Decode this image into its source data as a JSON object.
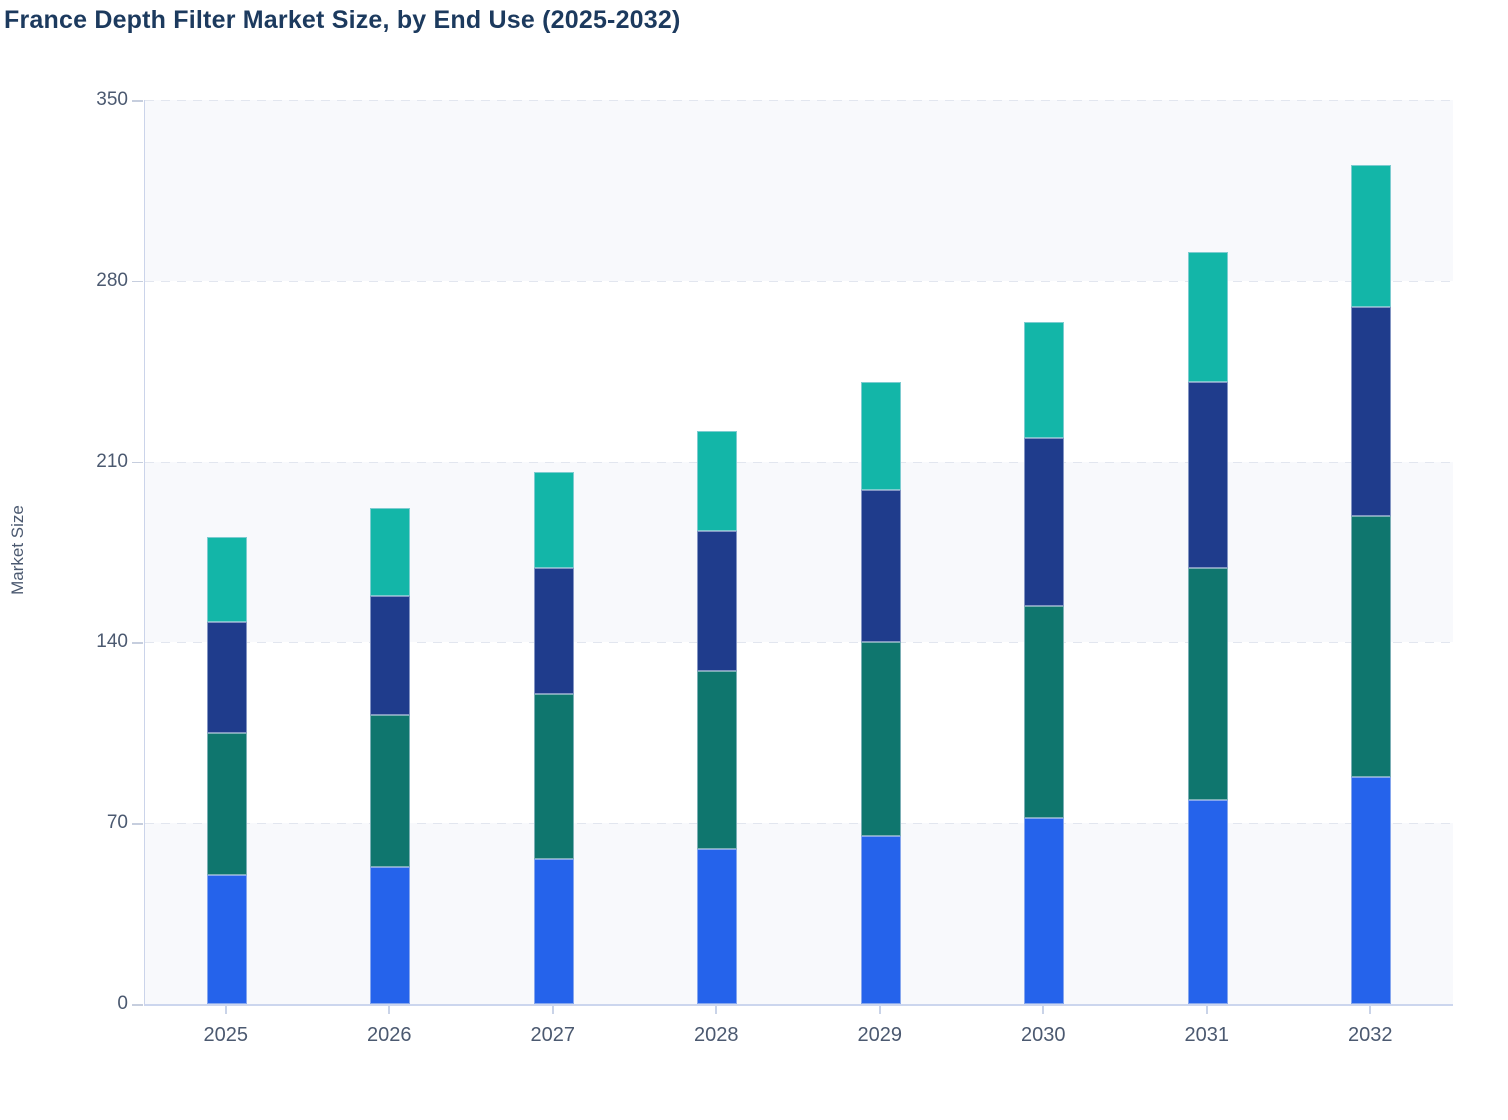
{
  "page": {
    "background_color": "#ffffff"
  },
  "chart": {
    "title": "France Depth Filter Market Size, by End Use (2025-2032)",
    "ylabel": "Market Size"
  },
  "chart_data": {
    "type": "bar",
    "stacked": true,
    "title": "France Depth Filter Market Size, by End Use (2025-2032)",
    "xlabel": "",
    "ylabel": "Market Size",
    "ylim": [
      0,
      350
    ],
    "yticks": [
      0,
      70,
      140,
      210,
      280,
      350
    ],
    "legend_position": "none",
    "grid": "horizontal dashed gridlines at each y tick, alternating band fill between gridlines starting gray at 0-70",
    "categories": [
      "2025",
      "2026",
      "2027",
      "2028",
      "2029",
      "2030",
      "2031",
      "2032"
    ],
    "series": [
      {
        "name": "segment-1-bottom-blue",
        "color": "#2563eb",
        "values": [
          50,
          53,
          56,
          60,
          65,
          72,
          79,
          88
        ]
      },
      {
        "name": "segment-2-dark-green",
        "color": "#0f766e",
        "values": [
          55,
          59,
          64,
          69,
          75,
          82,
          90,
          101
        ]
      },
      {
        "name": "segment-3-navy",
        "color": "#1f3c8c",
        "values": [
          43,
          46,
          49,
          54,
          59,
          65,
          72,
          81
        ]
      },
      {
        "name": "segment-4-top-teal",
        "color": "#13b6a8",
        "values": [
          33,
          34,
          37,
          39,
          42,
          45,
          50,
          55
        ]
      }
    ],
    "stack_totals": [
      181,
      192,
      206,
      222,
      241,
      264,
      291,
      325
    ],
    "colors": {
      "band_fill": "#f8f9fc",
      "gridline": "#e2e6ef",
      "x_axis_line": "#ccd6ee",
      "y_axis_line": "#cbd4ea",
      "tick_mark": "#c6cede",
      "tick_label_text": "#4b5970",
      "title_text": "#1c3a5e"
    }
  }
}
